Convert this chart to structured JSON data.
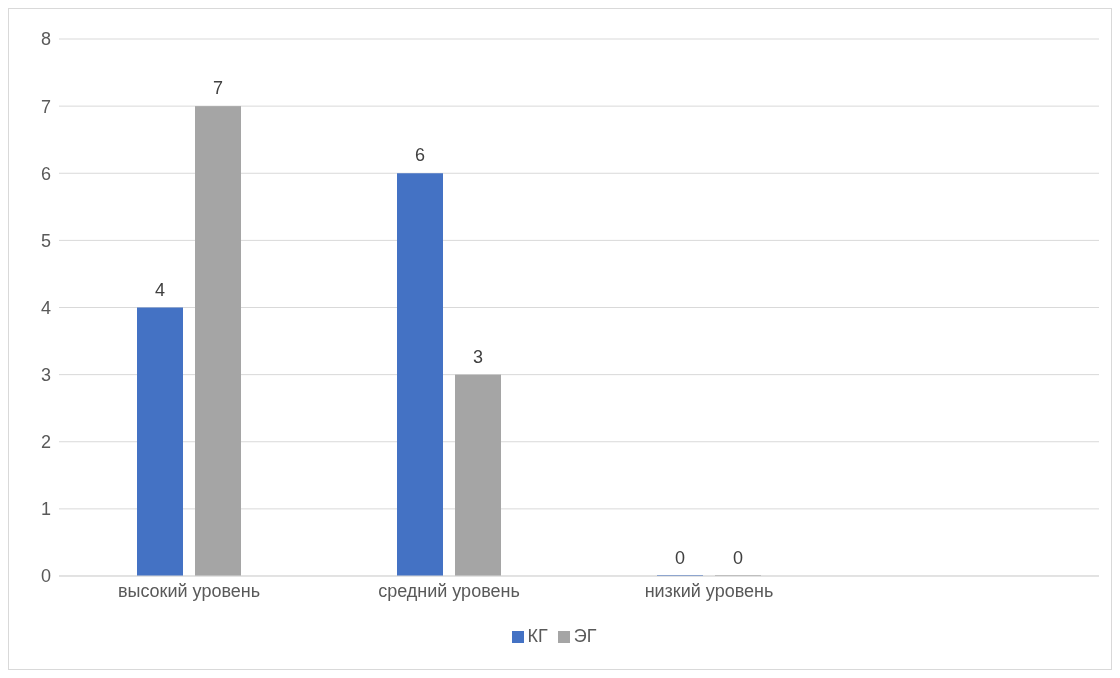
{
  "chart_data": {
    "type": "bar",
    "categories": [
      "высокий уровень",
      "средний уровень",
      "низкий уровень",
      null
    ],
    "series": [
      {
        "name": "КГ",
        "color": "#4472c4",
        "values": [
          4,
          6,
          0,
          null
        ]
      },
      {
        "name": "ЭГ",
        "color": "#a5a5a5",
        "values": [
          7,
          3,
          0,
          null
        ]
      }
    ],
    "ylim": [
      0,
      8
    ],
    "yticks": [
      0,
      1,
      2,
      3,
      4,
      5,
      6,
      7,
      8
    ],
    "grid": "y",
    "legend": "bottom",
    "data_labels": true
  }
}
